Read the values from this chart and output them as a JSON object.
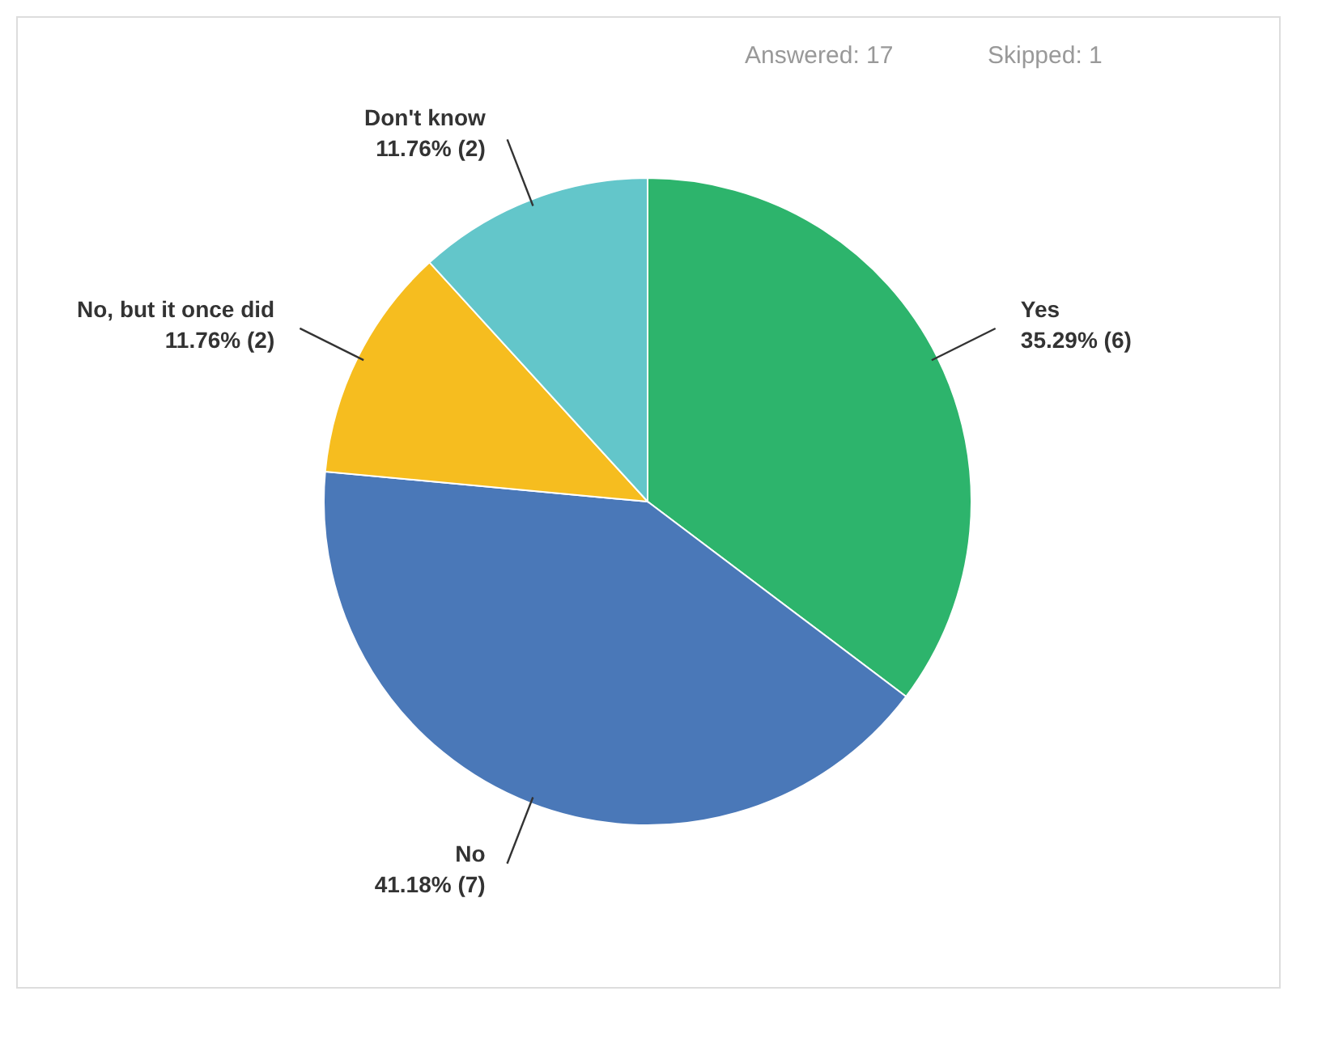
{
  "chart_data": {
    "type": "pie",
    "categories": [
      "Yes",
      "No",
      "No, but it once did",
      "Don't know"
    ],
    "values": [
      35.29,
      41.18,
      11.76,
      11.76
    ],
    "value_labels": [
      "35.29% (6)",
      "41.18% (7)",
      "11.76% (2)",
      "11.76% (2)"
    ],
    "colors": [
      "#2db46c",
      "#4a78b8",
      "#f6bd1f",
      "#63c6ca"
    ],
    "annotations": [
      "Answered: 17",
      "Skipped: 1"
    ],
    "legend": false
  }
}
